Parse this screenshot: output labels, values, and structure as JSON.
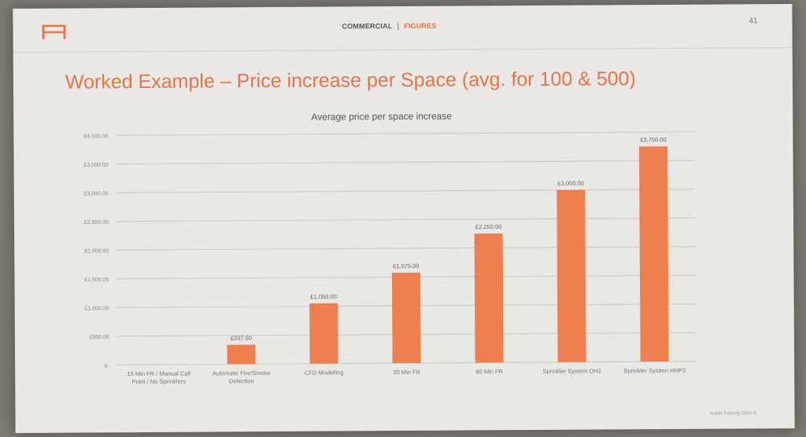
{
  "header": {
    "nav_commercial": "COMMERCIAL",
    "nav_separator": "|",
    "nav_figures": "FIGURES",
    "page_number": "41"
  },
  "slide_title": "Worked Example – Price increase per Space (avg. for 100 & 500)",
  "footer": "Huber Parking 2024 ©",
  "colors": {
    "accent": "#e8744a",
    "bar": "#f07f4f",
    "slide_bg": "#e9e8e4",
    "grid": "#cfcdc8"
  },
  "icons": {
    "logo": "h-logo-icon"
  },
  "chart_data": {
    "type": "bar",
    "title": "Average price per space increase",
    "categories": [
      "15 Min FR / Manual Call Point / No Sprinklers",
      "Automatic Fire/Smoke Detection",
      "CFD Modelling",
      "30 Min FR",
      "60 Min FR",
      "Sprinkler System OH2",
      "Sprinkler System HHP3"
    ],
    "category_lines": [
      [
        "15 Min FR / Manual Call",
        "Point / No Sprinklers"
      ],
      [
        "Automatic Fire/Smoke",
        "Detection"
      ],
      [
        "CFD Modelling"
      ],
      [
        "30 Min FR"
      ],
      [
        "60 Min FR"
      ],
      [
        "Sprinkler System OH2"
      ],
      [
        "Sprinkler System HHP3"
      ]
    ],
    "values": [
      0,
      337.5,
      1050,
      1575,
      2250,
      3000,
      3750
    ],
    "data_labels": [
      "",
      "£337.50",
      "£1,050.00",
      "£1,575.00",
      "£2,250.00",
      "£3,000.00",
      "£3,750.00"
    ],
    "ylim": [
      0,
      4000
    ],
    "yticks": [
      0,
      500,
      1000,
      1500,
      2000,
      2500,
      3000,
      3500,
      4000
    ],
    "ytick_labels": [
      "£-",
      "£500.00",
      "£1,000.00",
      "£1,500.00",
      "£2,000.00",
      "£2,500.00",
      "£3,000.00",
      "£3,500.00",
      "£4,000.00"
    ],
    "grid": true,
    "legend": "none"
  }
}
